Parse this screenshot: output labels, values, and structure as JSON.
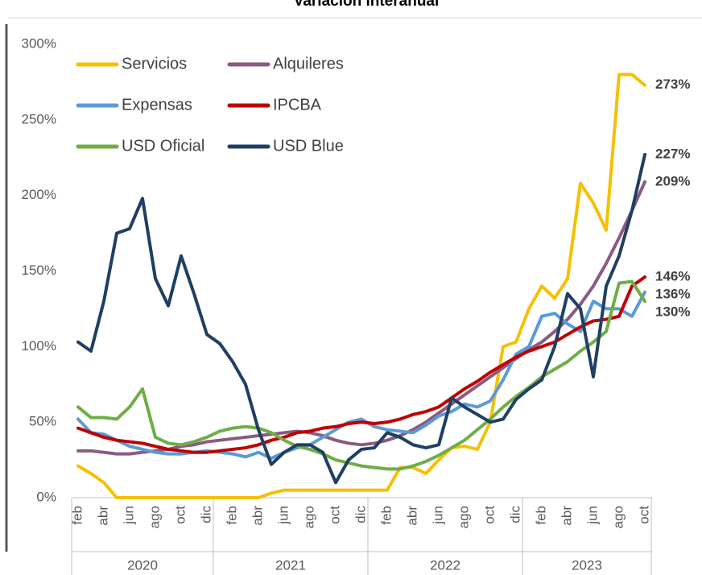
{
  "chart_data": {
    "type": "line",
    "title": "Variación interanual",
    "categories": [
      "feb",
      null,
      "abr",
      null,
      "jun",
      null,
      "ago",
      null,
      "oct",
      null,
      "dic",
      null,
      "feb",
      null,
      "abr",
      null,
      "jun",
      null,
      "ago",
      null,
      "oct",
      null,
      "dic",
      null,
      "feb",
      null,
      "abr",
      null,
      "jun",
      null,
      "ago",
      null,
      "oct",
      null,
      "dic",
      null,
      "feb",
      null,
      "abr",
      null,
      "jun",
      null,
      "ago",
      null,
      "oct"
    ],
    "x_groups": [
      {
        "label": "2020",
        "months": 11
      },
      {
        "label": "2021",
        "months": 12
      },
      {
        "label": "2022",
        "months": 12
      },
      {
        "label": "2023",
        "months": 10
      }
    ],
    "ylim": [
      0,
      300
    ],
    "yticks": [
      {
        "value": 0,
        "label": "0%"
      },
      {
        "value": 50,
        "label": "50%"
      },
      {
        "value": 100,
        "label": "100%"
      },
      {
        "value": 150,
        "label": "150%"
      },
      {
        "value": 200,
        "label": "200%"
      },
      {
        "value": 250,
        "label": "250%"
      },
      {
        "value": 300,
        "label": "300%"
      }
    ],
    "grid": false,
    "series": [
      {
        "name": "Servicios",
        "color": "#f5c000",
        "values": [
          21,
          16,
          10,
          0,
          0,
          0,
          0,
          0,
          0,
          0,
          0,
          0,
          0,
          0,
          0,
          3,
          5,
          5,
          5,
          5,
          5,
          5,
          5,
          5,
          5,
          20,
          20,
          16,
          25,
          33,
          34,
          32,
          50,
          100,
          103,
          125,
          140,
          132,
          145,
          208,
          195,
          177,
          280,
          280,
          273
        ],
        "value_labels": [
          null,
          null,
          null,
          null,
          null,
          null,
          null,
          null,
          null,
          null,
          null,
          null,
          null,
          null,
          null,
          null,
          null,
          null,
          null,
          null,
          null,
          null,
          null,
          null,
          null,
          null,
          null,
          null,
          null,
          null,
          null,
          null,
          null,
          null,
          null,
          null,
          null,
          null,
          null,
          null,
          null,
          null,
          null,
          null,
          "273%"
        ]
      },
      {
        "name": "Alquileres",
        "color": "#8b5a83",
        "values": [
          31,
          31,
          30,
          29,
          29,
          30,
          31,
          32,
          34,
          35,
          37,
          38,
          39,
          40,
          41,
          42,
          43,
          44,
          43,
          41,
          38,
          36,
          35,
          36,
          38,
          41,
          45,
          50,
          56,
          62,
          68,
          74,
          80,
          86,
          92,
          98,
          103,
          110,
          118,
          128,
          140,
          155,
          172,
          190,
          209
        ],
        "value_labels": [
          null,
          null,
          null,
          null,
          null,
          null,
          null,
          null,
          null,
          null,
          null,
          null,
          null,
          null,
          null,
          null,
          null,
          null,
          null,
          null,
          null,
          null,
          null,
          null,
          null,
          null,
          null,
          null,
          null,
          null,
          null,
          null,
          null,
          null,
          null,
          null,
          null,
          null,
          null,
          null,
          null,
          null,
          null,
          null,
          "209%"
        ]
      },
      {
        "name": "Expensas",
        "color": "#5b9bd5",
        "values": [
          52,
          43,
          42,
          38,
          34,
          32,
          30,
          29,
          29,
          30,
          31,
          30,
          29,
          27,
          30,
          26,
          30,
          33,
          35,
          40,
          45,
          50,
          52,
          47,
          45,
          44,
          43,
          48,
          54,
          57,
          62,
          60,
          64,
          78,
          95,
          100,
          120,
          122,
          115,
          110,
          130,
          125,
          125,
          120,
          136
        ],
        "value_labels": [
          null,
          null,
          null,
          null,
          null,
          null,
          null,
          null,
          null,
          null,
          null,
          null,
          null,
          null,
          null,
          null,
          null,
          null,
          null,
          null,
          null,
          null,
          null,
          null,
          null,
          null,
          null,
          null,
          null,
          null,
          null,
          null,
          null,
          null,
          null,
          null,
          null,
          null,
          null,
          null,
          null,
          null,
          null,
          null,
          "136%"
        ]
      },
      {
        "name": "IPCBA",
        "color": "#c00000",
        "values": [
          46,
          43,
          40,
          38,
          37,
          36,
          34,
          32,
          31,
          30,
          30,
          31,
          32,
          33,
          35,
          38,
          40,
          43,
          44,
          46,
          47,
          49,
          50,
          49,
          50,
          52,
          55,
          57,
          60,
          66,
          72,
          77,
          83,
          88,
          93,
          97,
          100,
          103,
          108,
          113,
          117,
          118,
          120,
          140,
          146
        ],
        "value_labels": [
          null,
          null,
          null,
          null,
          null,
          null,
          null,
          null,
          null,
          null,
          null,
          null,
          null,
          null,
          null,
          null,
          null,
          null,
          null,
          null,
          null,
          null,
          null,
          null,
          null,
          null,
          null,
          null,
          null,
          null,
          null,
          null,
          null,
          null,
          null,
          null,
          null,
          null,
          null,
          null,
          null,
          null,
          null,
          null,
          "146%"
        ]
      },
      {
        "name": "USD Oficial",
        "color": "#70ad47",
        "values": [
          60,
          53,
          53,
          52,
          60,
          72,
          40,
          36,
          35,
          37,
          40,
          44,
          46,
          47,
          46,
          43,
          38,
          34,
          32,
          29,
          25,
          23,
          21,
          20,
          19,
          19,
          21,
          24,
          28,
          33,
          38,
          45,
          52,
          60,
          67,
          73,
          80,
          85,
          90,
          97,
          103,
          110,
          142,
          143,
          130
        ],
        "value_labels": [
          null,
          null,
          null,
          null,
          null,
          null,
          null,
          null,
          null,
          null,
          null,
          null,
          null,
          null,
          null,
          null,
          null,
          null,
          null,
          null,
          null,
          null,
          null,
          null,
          null,
          null,
          null,
          null,
          null,
          null,
          null,
          null,
          null,
          null,
          null,
          null,
          null,
          null,
          null,
          null,
          null,
          null,
          null,
          null,
          "130%"
        ]
      },
      {
        "name": "USD Blue",
        "color": "#1f3f63",
        "values": [
          103,
          97,
          130,
          175,
          178,
          198,
          145,
          127,
          160,
          135,
          108,
          102,
          90,
          75,
          45,
          22,
          30,
          35,
          35,
          30,
          10,
          25,
          32,
          33,
          43,
          40,
          35,
          33,
          35,
          66,
          60,
          55,
          50,
          52,
          65,
          72,
          78,
          100,
          135,
          125,
          80,
          140,
          160,
          190,
          227
        ],
        "value_labels": [
          null,
          null,
          null,
          null,
          null,
          null,
          null,
          null,
          null,
          null,
          null,
          null,
          null,
          null,
          null,
          null,
          null,
          null,
          null,
          null,
          null,
          null,
          null,
          null,
          null,
          null,
          null,
          null,
          null,
          null,
          null,
          null,
          null,
          null,
          null,
          null,
          null,
          null,
          null,
          null,
          null,
          null,
          null,
          null,
          "227%"
        ]
      }
    ]
  }
}
